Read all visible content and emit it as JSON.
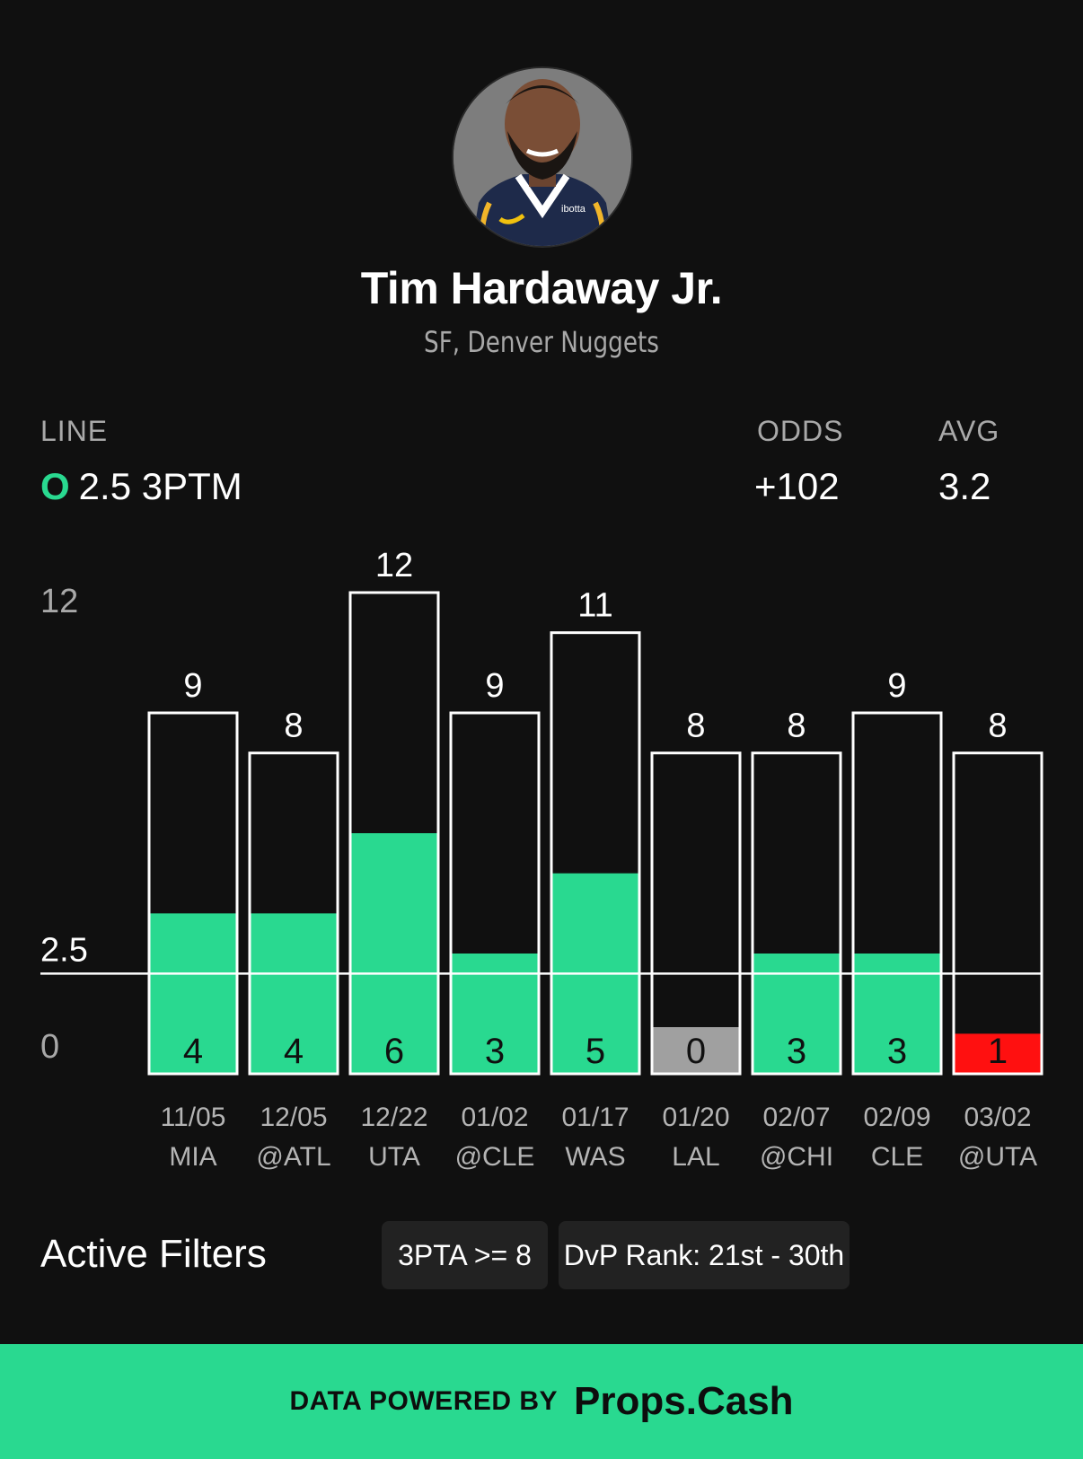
{
  "player": {
    "name": "Tim Hardaway Jr.",
    "team": "SF, Denver Nuggets"
  },
  "line": {
    "label": "LINE",
    "side": "O",
    "value": "2.5 3PTM"
  },
  "odds": {
    "label": "ODDS",
    "value": "+102"
  },
  "avg": {
    "label": "AVG",
    "value": "3.2"
  },
  "chart_data": {
    "type": "bar",
    "categories": [
      "11/05 MIA",
      "12/05 @ATL",
      "12/22 UTA",
      "01/02 @CLE",
      "01/17 WAS",
      "01/20 LAL",
      "02/07 @CHI",
      "02/09 CLE",
      "03/02 @UTA"
    ],
    "dates": [
      "11/05",
      "12/05",
      "12/22",
      "01/02",
      "01/17",
      "01/20",
      "02/07",
      "02/09",
      "03/02"
    ],
    "opponents": [
      "MIA",
      "@ATL",
      "UTA",
      "@CLE",
      "WAS",
      "LAL",
      "@CHI",
      "CLE",
      "@UTA"
    ],
    "series": [
      {
        "name": "3PTA",
        "values": [
          9,
          8,
          12,
          9,
          11,
          8,
          8,
          9,
          8
        ]
      },
      {
        "name": "3PTM",
        "values": [
          4,
          4,
          6,
          3,
          5,
          0,
          3,
          3,
          1
        ]
      }
    ],
    "line": 2.5,
    "line_label": "2.5",
    "ylim": [
      0,
      12
    ],
    "yticks": [
      "0",
      "12"
    ],
    "colors": {
      "over": "#29d990",
      "under": "#ff1010",
      "push_zero": "#a0a0a0",
      "outline": "#ffffff"
    }
  },
  "filters": {
    "title": "Active Filters",
    "chips": [
      "3PTA >= 8",
      "DvP Rank: 21st - 30th"
    ]
  },
  "footer": {
    "prefix": "DATA POWERED BY",
    "brand": "Props.Cash"
  }
}
